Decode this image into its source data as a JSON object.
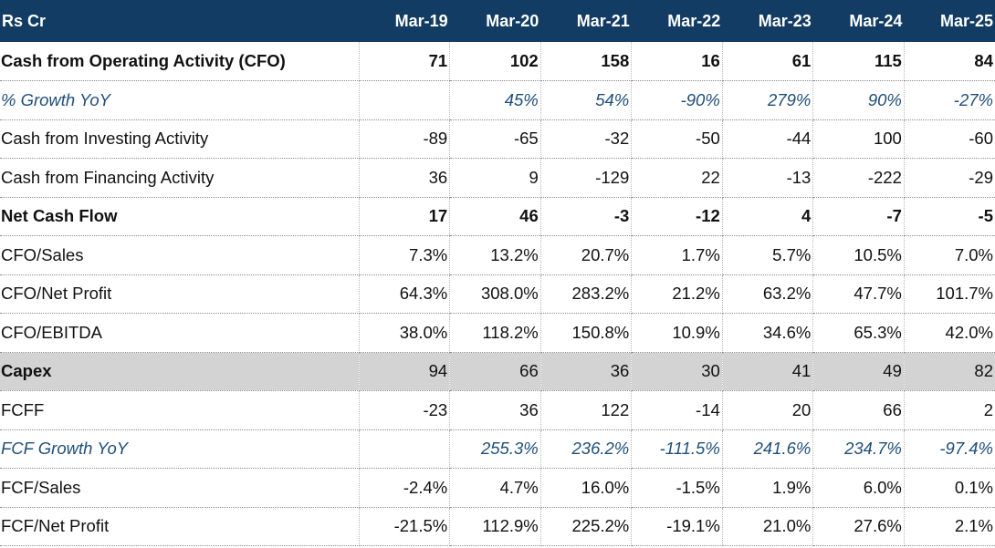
{
  "header": {
    "label": "Rs Cr",
    "years": [
      "Mar-19",
      "Mar-20",
      "Mar-21",
      "Mar-22",
      "Mar-23",
      "Mar-24",
      "Mar-25"
    ]
  },
  "colors": {
    "header_bg": "#123c63",
    "header_text": "#ffffff",
    "italic_text": "#1f4e79",
    "shaded_row": "#d3d3d3"
  },
  "rows": [
    {
      "label": "Cash from Operating Activity (CFO)",
      "style": "bold",
      "values": [
        "71",
        "102",
        "158",
        "16",
        "61",
        "115",
        "84"
      ]
    },
    {
      "label": "% Growth YoY",
      "style": "italic",
      "values": [
        "",
        "45%",
        "54%",
        "-90%",
        "279%",
        "90%",
        "-27%"
      ]
    },
    {
      "label": "Cash from Investing Activity",
      "style": "normal",
      "values": [
        "-89",
        "-65",
        "-32",
        "-50",
        "-44",
        "100",
        "-60"
      ]
    },
    {
      "label": "Cash from Financing Activity",
      "style": "normal",
      "values": [
        "36",
        "9",
        "-129",
        "22",
        "-13",
        "-222",
        "-29"
      ]
    },
    {
      "label": "Net Cash Flow",
      "style": "bold",
      "values": [
        "17",
        "46",
        "-3",
        "-12",
        "4",
        "-7",
        "-5"
      ]
    },
    {
      "label": "CFO/Sales",
      "style": "normal",
      "values": [
        "7.3%",
        "13.2%",
        "20.7%",
        "1.7%",
        "5.7%",
        "10.5%",
        "7.0%"
      ]
    },
    {
      "label": "CFO/Net Profit",
      "style": "normal",
      "values": [
        "64.3%",
        "308.0%",
        "283.2%",
        "21.2%",
        "63.2%",
        "47.7%",
        "101.7%"
      ]
    },
    {
      "label": "CFO/EBITDA",
      "style": "normal",
      "values": [
        "38.0%",
        "118.2%",
        "150.8%",
        "10.9%",
        "34.6%",
        "65.3%",
        "42.0%"
      ]
    },
    {
      "label": "Capex",
      "style": "shaded",
      "values": [
        "94",
        "66",
        "36",
        "30",
        "41",
        "49",
        "82"
      ]
    },
    {
      "label": "FCFF",
      "style": "normal",
      "values": [
        "-23",
        "36",
        "122",
        "-14",
        "20",
        "66",
        "2"
      ]
    },
    {
      "label": "FCF Growth YoY",
      "style": "italic",
      "values": [
        "",
        "255.3%",
        "236.2%",
        "-111.5%",
        "241.6%",
        "234.7%",
        "-97.4%"
      ]
    },
    {
      "label": "FCF/Sales",
      "style": "normal",
      "values": [
        "-2.4%",
        "4.7%",
        "16.0%",
        "-1.5%",
        "1.9%",
        "6.0%",
        "0.1%"
      ]
    },
    {
      "label": "FCF/Net Profit",
      "style": "normal",
      "values": [
        "-21.5%",
        "112.9%",
        "225.2%",
        "-19.1%",
        "21.0%",
        "27.6%",
        "2.1%"
      ]
    }
  ]
}
